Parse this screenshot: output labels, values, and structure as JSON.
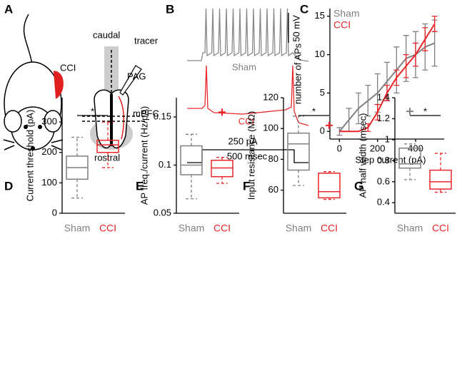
{
  "panel_a": {
    "label": "A",
    "texts": [
      "CCI",
      "caudal",
      "tracer",
      "PAG",
      "mPFC",
      "rostral"
    ]
  },
  "panel_b": {
    "label": "B",
    "scale_bar": "50 mV",
    "trace_labels": [
      "Sham",
      "CCI"
    ],
    "current": "250 pA",
    "duration": "500 msec"
  },
  "chart_data": [
    {
      "label": "C",
      "type": "line",
      "xlabel": "Step current (pA)",
      "ylabel": "number of APs",
      "xlim": [
        -50,
        550
      ],
      "xticks": [
        0,
        200,
        400
      ],
      "ylim": [
        -1,
        16
      ],
      "yticks": [
        0,
        5,
        10,
        15
      ],
      "legend": "upper left",
      "series": [
        {
          "name": "Sham",
          "color": "#808080",
          "x": [
            0,
            50,
            100,
            150,
            200,
            250,
            300,
            350,
            400,
            450,
            500
          ],
          "values": [
            0,
            1.5,
            3,
            4,
            5,
            6.5,
            8,
            9.5,
            10,
            11,
            11.5
          ],
          "error": [
            0.5,
            1.5,
            2,
            2,
            2.5,
            2.5,
            3,
            3,
            3,
            3,
            3
          ]
        },
        {
          "name": "CCI",
          "color": "#e8262a",
          "x": [
            0,
            50,
            100,
            150,
            200,
            250,
            300,
            350,
            400,
            450,
            500
          ],
          "values": [
            0,
            0,
            0,
            0.5,
            2.5,
            5,
            7,
            8.5,
            10,
            12,
            14
          ],
          "error": [
            0,
            0,
            0,
            0.5,
            1,
            1,
            1,
            1.5,
            1.5,
            1.5,
            1
          ]
        }
      ]
    },
    {
      "label": "D",
      "type": "box",
      "ylabel": "Current threshold (pA)",
      "ylim": [
        0,
        380
      ],
      "yticks": [
        0,
        100,
        200,
        300
      ],
      "categories": [
        "Sham",
        "CCI"
      ],
      "colors": [
        "#808080",
        "#e8262a"
      ],
      "annotation": "*",
      "boxes": [
        {
          "min": 50,
          "q1": 112,
          "median": 150,
          "q3": 188,
          "max": 250,
          "outliers": []
        },
        {
          "min": 150,
          "q1": 200,
          "median": 225,
          "q3": 240,
          "max": 300,
          "outliers": []
        }
      ]
    },
    {
      "label": "E",
      "type": "box",
      "ylabel": "AP freq./current (Hz/pA)",
      "ylim": [
        0.05,
        0.17
      ],
      "yticks": [
        0.05,
        0.1,
        0.15
      ],
      "categories": [
        "Sham",
        "CCI"
      ],
      "colors": [
        "#808080",
        "#e8262a"
      ],
      "boxes": [
        {
          "min": 0.065,
          "q1": 0.09,
          "median": 0.1,
          "q3": 0.12,
          "max": 0.132,
          "outliers": []
        },
        {
          "min": 0.081,
          "q1": 0.088,
          "median": 0.097,
          "q3": 0.105,
          "max": 0.108,
          "outliers": [
            0.155
          ]
        }
      ]
    },
    {
      "label": "F",
      "type": "box",
      "ylabel": "Input resistance (MΩ)",
      "ylim": [
        45,
        120
      ],
      "yticks": [
        60,
        80,
        100,
        120
      ],
      "categories": [
        "Sham",
        "CCI"
      ],
      "colors": [
        "#808080",
        "#e8262a"
      ],
      "annotation": "*",
      "boxes": [
        {
          "min": 63,
          "q1": 73,
          "median": 90,
          "q3": 97,
          "max": 108,
          "outliers": []
        },
        {
          "min": 54,
          "q1": 55,
          "median": 59,
          "q3": 71,
          "max": 72,
          "outliers": [
            102
          ]
        }
      ]
    },
    {
      "label": "G",
      "type": "box",
      "ylabel": "AP half width (msec)",
      "ylim": [
        0.3,
        1.4
      ],
      "yticks": [
        0.4,
        0.6,
        0.8,
        1,
        1.2,
        1.4
      ],
      "categories": [
        "Sham",
        "CCI"
      ],
      "colors": [
        "#808080",
        "#e8262a"
      ],
      "annotation": "*",
      "boxes": [
        {
          "min": 0.62,
          "q1": 0.73,
          "median": 0.77,
          "q3": 0.92,
          "max": 0.96,
          "outliers": [
            1.27
          ]
        },
        {
          "min": 0.5,
          "q1": 0.53,
          "median": 0.6,
          "q3": 0.71,
          "max": 0.87,
          "outliers": []
        }
      ]
    }
  ]
}
